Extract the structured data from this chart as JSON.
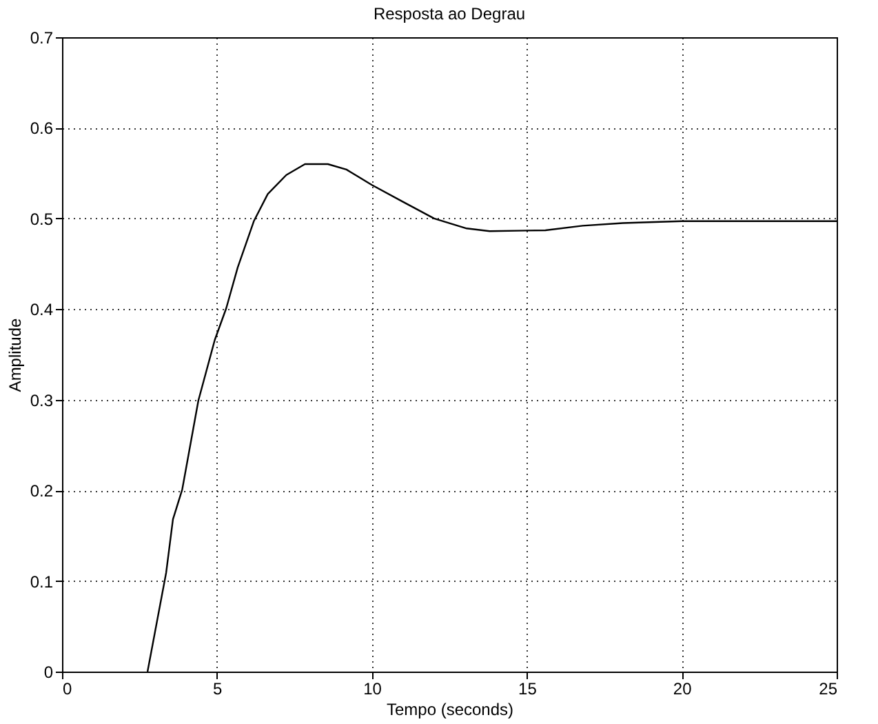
{
  "chart_data": {
    "type": "line",
    "title": "Resposta ao Degrau",
    "xlabel": "Tempo (seconds)",
    "ylabel": "Amplitude",
    "x": [
      2.76,
      3.36,
      3.58,
      3.88,
      4.4,
      4.93,
      5.3,
      5.67,
      6.19,
      6.64,
      7.24,
      7.84,
      8.58,
      9.18,
      10.0,
      10.97,
      12.01,
      13.06,
      13.8,
      15.6,
      16.8,
      18.1,
      20,
      25
    ],
    "series": [
      {
        "color": "#000000",
        "values": [
          0,
          0.109,
          0.168,
          0.201,
          0.299,
          0.366,
          0.401,
          0.446,
          0.497,
          0.527,
          0.548,
          0.56,
          0.56,
          0.554,
          0.537,
          0.519,
          0.5,
          0.489,
          0.486,
          0.487,
          0.492,
          0.495,
          0.497,
          0.497
        ]
      }
    ],
    "xlim": [
      0,
      25
    ],
    "xticks": [
      0,
      5,
      10,
      15,
      20,
      25
    ],
    "ylim": [
      0,
      0.7
    ],
    "yticks": [
      0,
      0.1,
      0.2,
      0.3,
      0.4,
      0.5,
      0.6,
      0.7
    ],
    "grid": true,
    "marker": "none",
    "line_style": "solid"
  }
}
